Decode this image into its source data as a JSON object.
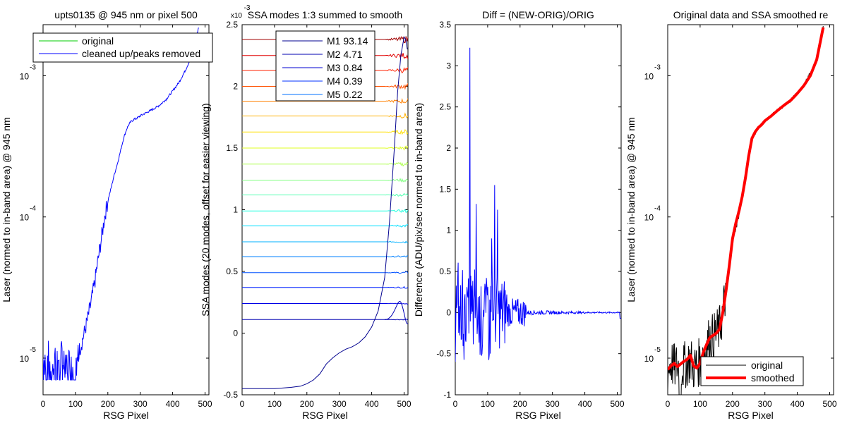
{
  "chart_data": [
    {
      "type": "line",
      "title": "upts0135 @ 945 nm or pixel 500",
      "xlabel": "RSG Pixel",
      "ylabel": "Laser (normed to in-band area) @ 945 nm",
      "yscale": "log",
      "xlim": [
        0,
        512
      ],
      "ylim": [
        5.5e-06,
        0.0023
      ],
      "xticks": [
        "0",
        "100",
        "200",
        "300",
        "400",
        "500"
      ],
      "yticks": [
        {
          "value": 1e-05,
          "base": "10",
          "exp": "-5"
        },
        {
          "value": 0.0001,
          "base": "10",
          "exp": "-4"
        },
        {
          "value": 0.001,
          "base": "10",
          "exp": "-3"
        }
      ],
      "legend_position": "top",
      "colors": {
        "original": "#00cc00",
        "cleaned": "#0000ff"
      },
      "series": [
        {
          "name": "original",
          "color": "#00cc00",
          "x": [],
          "y": []
        },
        {
          "name": "cleaned up/peaks removed",
          "color": "#0000ff",
          "x": [
            0,
            10,
            20,
            30,
            40,
            50,
            60,
            70,
            80,
            90,
            100,
            110,
            120,
            130,
            140,
            150,
            160,
            170,
            180,
            190,
            200,
            210,
            220,
            230,
            240,
            250,
            260,
            270,
            280,
            290,
            300,
            320,
            340,
            360,
            380,
            400,
            420,
            440,
            460,
            480
          ],
          "y": [
            1e-05,
            1e-05,
            1e-05,
            1e-05,
            1e-05,
            1e-05,
            1e-05,
            1e-05,
            1e-05,
            1e-05,
            1e-05,
            1.1e-05,
            1.3e-05,
            1.6e-05,
            2e-05,
            2.6e-05,
            3.5e-05,
            5e-05,
            7e-05,
            0.0001,
            0.00013,
            0.00016,
            0.0002,
            0.00024,
            0.0003,
            0.00037,
            0.00043,
            0.00047,
            0.00049,
            0.0005,
            0.00052,
            0.00055,
            0.00058,
            0.00062,
            0.00068,
            0.00078,
            0.0009,
            0.0011,
            0.0014,
            0.0022
          ]
        }
      ]
    },
    {
      "type": "line",
      "title": "SSA modes 1:3 summed to smooth",
      "exponent_label": {
        "base": "x10",
        "exp": "-3"
      },
      "xlabel": "RSG Pixel",
      "ylabel": "SSA modes (20 modes, offset for easier viewing)",
      "xlim": [
        0,
        512
      ],
      "ylim": [
        -0.5,
        2.5
      ],
      "xticks": [
        "0",
        "100",
        "200",
        "300",
        "400",
        "500"
      ],
      "yticks": [
        "-0.5",
        "0",
        "0.5",
        "1",
        "1.5",
        "2",
        "2.5"
      ],
      "legend_position": "top-right",
      "legend": [
        {
          "label": "M1 93.14",
          "color": "#00008f"
        },
        {
          "label": "M2 4.71",
          "color": "#0000b0"
        },
        {
          "label": "M3 0.84",
          "color": "#0000d0"
        },
        {
          "label": "M4 0.39",
          "color": "#0030ff"
        },
        {
          "label": "M5 0.22",
          "color": "#0070ff"
        }
      ],
      "mode_offsets": [
        0.11,
        0.24,
        0.37,
        0.49,
        0.62,
        0.74,
        0.87,
        0.99,
        1.12,
        1.24,
        1.37,
        1.5,
        1.63,
        1.76,
        1.88,
        2.0,
        2.13,
        2.25,
        2.38
      ],
      "series": [
        {
          "name": "mode 1",
          "color": "#00008f",
          "x": [
            0,
            50,
            100,
            150,
            180,
            200,
            220,
            240,
            260,
            280,
            300,
            320,
            340,
            360,
            380,
            400,
            420,
            440,
            455,
            470,
            480,
            490,
            500,
            505,
            510
          ],
          "y": [
            -0.45,
            -0.45,
            -0.45,
            -0.44,
            -0.43,
            -0.41,
            -0.38,
            -0.33,
            -0.25,
            -0.2,
            -0.16,
            -0.13,
            -0.11,
            -0.08,
            -0.03,
            0.05,
            0.18,
            0.45,
            0.9,
            1.5,
            1.95,
            2.25,
            2.4,
            2.38,
            2.3
          ]
        }
      ]
    },
    {
      "type": "line",
      "title": "Diff = (NEW-ORIG)/ORIG",
      "xlabel": "RSG Pixel",
      "ylabel": "Difference (ADU/pix/sec normed to in-band area)",
      "xlim": [
        0,
        512
      ],
      "ylim": [
        -1,
        3.5
      ],
      "xticks": [
        "0",
        "100",
        "200",
        "300",
        "400",
        "500"
      ],
      "yticks": [
        "-1",
        "-0.5",
        "0",
        "0.5",
        "1",
        "1.5",
        "2",
        "2.5",
        "3",
        "3.5"
      ],
      "series": [
        {
          "name": "diff",
          "color": "#0000ff",
          "x": [
            0,
            8,
            15,
            22,
            30,
            38,
            42,
            45,
            50,
            58,
            62,
            65,
            70,
            75,
            80,
            88,
            95,
            100,
            105,
            112,
            118,
            122,
            126,
            130,
            138,
            145,
            152,
            160,
            170,
            180,
            190,
            200,
            220,
            250,
            300,
            350,
            400,
            450,
            500,
            512
          ],
          "y": [
            0.3,
            -0.35,
            0.45,
            -0.3,
            0.55,
            -0.4,
            0.8,
            3.22,
            -0.3,
            0.5,
            -0.35,
            1.32,
            -0.2,
            0.6,
            -0.4,
            0.7,
            -0.3,
            0.5,
            -0.25,
            0.7,
            -0.4,
            1.55,
            -0.3,
            1.25,
            -0.3,
            0.5,
            -0.35,
            0.55,
            -0.25,
            0.35,
            -0.2,
            0.2,
            -0.1,
            0.05,
            0.0,
            -0.02,
            0.03,
            0.0,
            0.01,
            -0.07
          ]
        }
      ]
    },
    {
      "type": "line",
      "title": "Original data and SSA smoothed re",
      "xlabel": "RSG Pixel",
      "ylabel": "Laser (normed to in-band area) @ 945 nm",
      "yscale": "log",
      "xlim": [
        0,
        512
      ],
      "ylim": [
        5.5e-06,
        0.0023
      ],
      "xticks": [
        "0",
        "100",
        "200",
        "300",
        "400",
        "500"
      ],
      "yticks": [
        {
          "value": 1e-05,
          "base": "10",
          "exp": "-5"
        },
        {
          "value": 0.0001,
          "base": "10",
          "exp": "-4"
        },
        {
          "value": 0.001,
          "base": "10",
          "exp": "-3"
        }
      ],
      "legend_position": "bottom",
      "series": [
        {
          "name": "original",
          "color": "#000000",
          "x": [
            0,
            10,
            20,
            30,
            40,
            50,
            60,
            70,
            80,
            90,
            100,
            110,
            120,
            130,
            140,
            150,
            160,
            170,
            180,
            190,
            200,
            220,
            240,
            260,
            280,
            300,
            340,
            380,
            420,
            460,
            480
          ],
          "y": [
            8e-06,
            9.5e-06,
            8.5e-06,
            9e-06,
            8.5e-06,
            8.8e-06,
            9.2e-06,
            9.8e-06,
            8.5e-06,
            9e-06,
            9.5e-06,
            1.1e-05,
            1.2e-05,
            1.4e-05,
            1.4e-05,
            1.5e-05,
            1.6e-05,
            2.1e-05,
            3e-05,
            4.5e-05,
            7e-05,
            0.00011,
            0.00019,
            0.00036,
            0.00043,
            0.00048,
            0.00057,
            0.00067,
            0.00085,
            0.0013,
            0.0022
          ]
        },
        {
          "name": "smoothed",
          "color": "#ff0000",
          "x": [
            0,
            10,
            20,
            30,
            40,
            50,
            60,
            70,
            80,
            90,
            100,
            110,
            120,
            130,
            140,
            150,
            160,
            170,
            180,
            190,
            200,
            210,
            220,
            230,
            240,
            250,
            260,
            270,
            280,
            290,
            300,
            320,
            340,
            360,
            380,
            400,
            420,
            440,
            460,
            480
          ],
          "y": [
            8.3e-06,
            8.8e-06,
            9.2e-06,
            8.7e-06,
            9.1e-06,
            9.5e-06,
            9.8e-06,
            1.05e-05,
            8.8e-06,
            8.5e-06,
            9.2e-06,
            1.1e-05,
            1.25e-05,
            1.4e-05,
            1.45e-05,
            1.5e-05,
            1.6e-05,
            2.1e-05,
            3e-05,
            4.5e-05,
            7e-05,
            9e-05,
            0.00011,
            0.00014,
            0.00019,
            0.00027,
            0.00036,
            0.0004,
            0.00043,
            0.00045,
            0.00048,
            0.00052,
            0.00057,
            0.00062,
            0.00067,
            0.00075,
            0.00085,
            0.001,
            0.0013,
            0.0022
          ]
        }
      ]
    }
  ]
}
